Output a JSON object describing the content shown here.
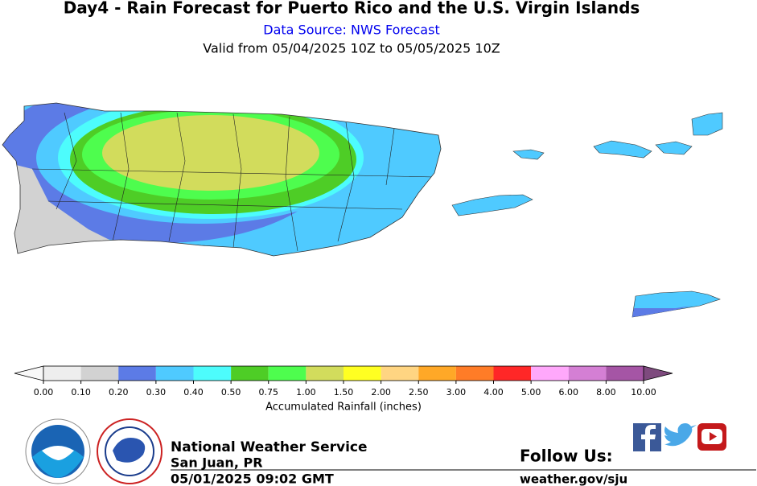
{
  "header": {
    "title": "Day4 - Rain Forecast for Puerto Rico and the U.S. Virgin Islands",
    "source": "Data Source: NWS Forecast",
    "valid": "Valid from 05/04/2025 10Z to 05/05/2025 10Z"
  },
  "legend": {
    "label": "Accumulated Rainfall (inches)",
    "ticks": [
      "0.00",
      "0.10",
      "0.20",
      "0.30",
      "0.40",
      "0.50",
      "0.75",
      "1.00",
      "1.50",
      "2.00",
      "2.50",
      "3.00",
      "4.00",
      "5.00",
      "6.00",
      "8.00",
      "10.00"
    ],
    "colors": [
      "#eeeeee",
      "#d2d2d2",
      "#5c7be6",
      "#4fcaff",
      "#4dfcfc",
      "#4ecd26",
      "#4efd4e",
      "#d2dc5c",
      "#ffff22",
      "#ffd582",
      "#ffa827",
      "#ff7c27",
      "#ff2727",
      "#ffa8fb",
      "#d47fd4",
      "#a555a5"
    ],
    "under_color": "#f8f8f8",
    "over_color": "#7e4a7e"
  },
  "footer": {
    "org": "National Weather Service",
    "office": "San Juan, PR",
    "issued": "05/01/2025 09:02 GMT",
    "follow": "Follow Us:",
    "site": "weather.gov/sju"
  }
}
